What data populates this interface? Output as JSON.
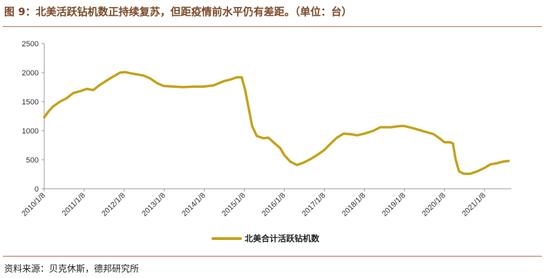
{
  "header": {
    "title": "图 9：北美活跃钻机数正持续复苏，但距疫情前水平仍有差距。（单位：台）"
  },
  "footer": {
    "source": "资料来源：贝克休斯，德邦研究所"
  },
  "colors": {
    "series": "#c4a21a",
    "rule": "#b07050",
    "title": "#7a4a2a",
    "axis": "#999999"
  },
  "chart_data": {
    "type": "line",
    "title": "",
    "xlabel": "",
    "ylabel": "",
    "ylim": [
      0,
      2500
    ],
    "yticks": [
      "0",
      "500",
      "1000",
      "1500",
      "2000",
      "2500"
    ],
    "xticks": [
      "2010/1/8",
      "2011/1/8",
      "2012/1/8",
      "2013/1/8",
      "2014/1/8",
      "2015/1/8",
      "2016/1/8",
      "2017/1/8",
      "2018/1/8",
      "2019/1/8",
      "2020/1/8",
      "2021/1/8"
    ],
    "grid": false,
    "legend_position": "bottom",
    "series": [
      {
        "name": "北美合计活跃钻机数",
        "points": [
          [
            "2010-01-08",
            1230
          ],
          [
            "2010-02-15",
            1330
          ],
          [
            "2010-04-01",
            1420
          ],
          [
            "2010-06-01",
            1500
          ],
          [
            "2010-08-01",
            1560
          ],
          [
            "2010-10-01",
            1650
          ],
          [
            "2010-12-01",
            1680
          ],
          [
            "2011-02-01",
            1720
          ],
          [
            "2011-04-01",
            1700
          ],
          [
            "2011-06-01",
            1790
          ],
          [
            "2011-09-01",
            1900
          ],
          [
            "2011-12-01",
            2000
          ],
          [
            "2012-01-15",
            2010
          ],
          [
            "2012-03-01",
            1990
          ],
          [
            "2012-05-01",
            1970
          ],
          [
            "2012-07-01",
            1950
          ],
          [
            "2012-09-01",
            1900
          ],
          [
            "2012-11-01",
            1820
          ],
          [
            "2013-01-01",
            1770
          ],
          [
            "2013-04-01",
            1760
          ],
          [
            "2013-07-01",
            1750
          ],
          [
            "2013-10-01",
            1760
          ],
          [
            "2014-01-01",
            1760
          ],
          [
            "2014-04-01",
            1780
          ],
          [
            "2014-07-01",
            1850
          ],
          [
            "2014-09-01",
            1880
          ],
          [
            "2014-11-01",
            1920
          ],
          [
            "2014-12-15",
            1920
          ],
          [
            "2015-01-15",
            1700
          ],
          [
            "2015-02-15",
            1400
          ],
          [
            "2015-03-20",
            1080
          ],
          [
            "2015-05-01",
            910
          ],
          [
            "2015-07-01",
            870
          ],
          [
            "2015-08-15",
            880
          ],
          [
            "2015-10-01",
            800
          ],
          [
            "2015-12-01",
            700
          ],
          [
            "2016-01-08",
            580
          ],
          [
            "2016-03-01",
            470
          ],
          [
            "2016-05-01",
            410
          ],
          [
            "2016-07-01",
            450
          ],
          [
            "2016-09-01",
            510
          ],
          [
            "2016-11-01",
            580
          ],
          [
            "2017-01-08",
            670
          ],
          [
            "2017-03-01",
            770
          ],
          [
            "2017-05-01",
            880
          ],
          [
            "2017-07-01",
            950
          ],
          [
            "2017-09-01",
            940
          ],
          [
            "2017-11-01",
            920
          ],
          [
            "2018-01-08",
            950
          ],
          [
            "2018-04-01",
            1000
          ],
          [
            "2018-06-01",
            1060
          ],
          [
            "2018-09-01",
            1060
          ],
          [
            "2018-12-01",
            1080
          ],
          [
            "2019-01-08",
            1080
          ],
          [
            "2019-04-01",
            1040
          ],
          [
            "2019-07-01",
            990
          ],
          [
            "2019-10-01",
            940
          ],
          [
            "2019-12-01",
            860
          ],
          [
            "2020-01-08",
            800
          ],
          [
            "2020-03-01",
            800
          ],
          [
            "2020-03-25",
            780
          ],
          [
            "2020-04-20",
            500
          ],
          [
            "2020-05-20",
            300
          ],
          [
            "2020-07-01",
            260
          ],
          [
            "2020-09-01",
            260
          ],
          [
            "2020-11-01",
            300
          ],
          [
            "2021-01-08",
            360
          ],
          [
            "2021-03-01",
            420
          ],
          [
            "2021-05-01",
            440
          ],
          [
            "2021-07-01",
            470
          ],
          [
            "2021-08-15",
            480
          ]
        ]
      }
    ]
  }
}
